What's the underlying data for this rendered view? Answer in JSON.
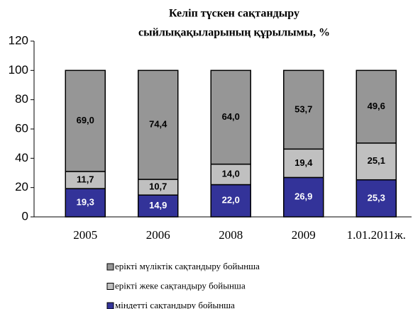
{
  "chart_data": {
    "type": "stacked_bar",
    "title": [
      "Келіп түскен сақтандыру",
      "сыйлықақыларының құрылымы,  %"
    ],
    "categories": [
      "2005",
      "2006",
      "2008",
      "2009",
      "1.01.2011ж."
    ],
    "series": [
      {
        "name": "міндетті сақтандыру бойынша",
        "color": "#333399",
        "label_color": "#ffffff",
        "values": [
          19.3,
          14.9,
          22.0,
          26.9,
          25.3
        ],
        "value_labels": [
          "19,3",
          "14,9",
          "22,0",
          "26,9",
          "25,3"
        ]
      },
      {
        "name": "ерікті жеке сақтандыру бойынша",
        "color": "#c0c0c0",
        "label_color": "#000000",
        "values": [
          11.7,
          10.7,
          14.0,
          19.4,
          25.1
        ],
        "value_labels": [
          "11,7",
          "10,7",
          "14,0",
          "19,4",
          "25,1"
        ]
      },
      {
        "name": "ерікті мүліктік сақтандыру бойынша",
        "color": "#969696",
        "label_color": "#000000",
        "values": [
          69.0,
          74.4,
          64.0,
          53.7,
          49.6
        ],
        "value_labels": [
          "69,0",
          "74,4",
          "64,0",
          "53,7",
          "49,6"
        ]
      }
    ],
    "ylim": [
      0,
      120
    ],
    "yticks": [
      0,
      20,
      40,
      60,
      80,
      100,
      120
    ],
    "grid": false,
    "legend": "bottom"
  }
}
